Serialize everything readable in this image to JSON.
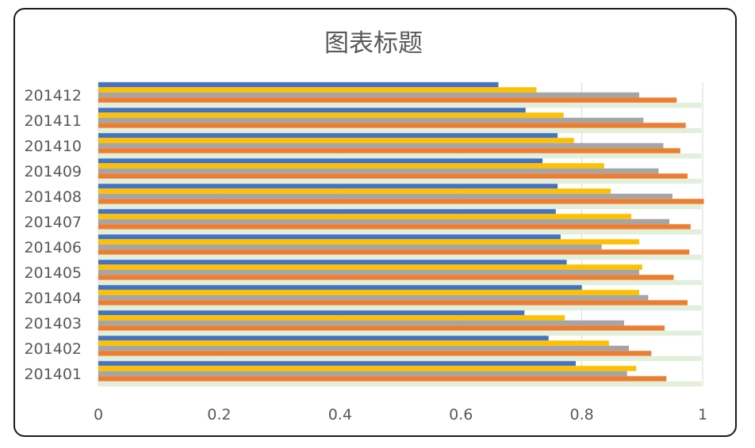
{
  "chart_data": {
    "type": "bar",
    "orientation": "horizontal",
    "title": "图表标题",
    "xlabel": "",
    "ylabel": "",
    "xlim": [
      0,
      1
    ],
    "x_ticks": [
      "0",
      "0.2",
      "0.4",
      "0.6",
      "0.8",
      "1"
    ],
    "grid": true,
    "legend": "none",
    "categories": [
      "201401",
      "201402",
      "201403",
      "201404",
      "201405",
      "201406",
      "201407",
      "201408",
      "201409",
      "201410",
      "201411",
      "201412"
    ],
    "series": [
      {
        "color": "#4472C4",
        "values": [
          0.79,
          0.745,
          0.705,
          0.8,
          0.775,
          0.765,
          0.757,
          0.76,
          0.735,
          0.76,
          0.707,
          0.662
        ]
      },
      {
        "color": "#FFC000",
        "values": [
          0.89,
          0.845,
          0.772,
          0.895,
          0.9,
          0.895,
          0.882,
          0.848,
          0.837,
          0.787,
          0.77,
          0.725
        ]
      },
      {
        "color": "#A5A5A5",
        "values": [
          0.875,
          0.878,
          0.87,
          0.91,
          0.895,
          0.833,
          0.945,
          0.95,
          0.927,
          0.935,
          0.902,
          0.895
        ]
      },
      {
        "color": "#ED7D31",
        "values": [
          0.94,
          0.915,
          0.937,
          0.975,
          0.952,
          0.978,
          0.98,
          1.002,
          0.975,
          0.963,
          0.972,
          0.957
        ]
      },
      {
        "color": "#E2EFDA",
        "values": [
          0.998,
          0.998,
          0.998,
          0.998,
          0.998,
          0.998,
          0.998,
          0.998,
          0.998,
          0.998,
          0.998,
          0.998
        ]
      }
    ]
  }
}
